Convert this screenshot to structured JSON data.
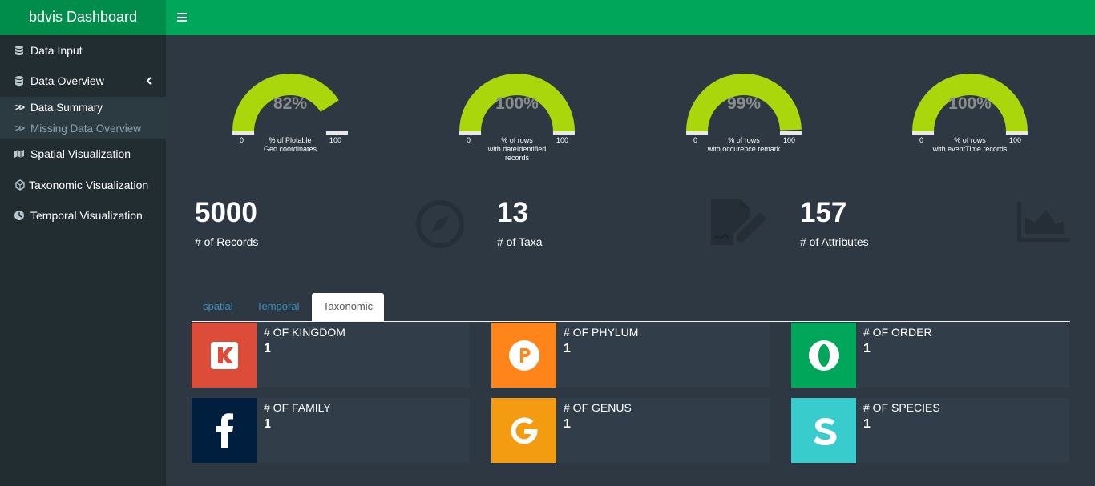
{
  "app": {
    "title": "bdvis Dashboard"
  },
  "sidebar": {
    "items": [
      {
        "label": "Data Input",
        "icon": "database-icon"
      },
      {
        "label": "Data Overview",
        "icon": "database-icon"
      },
      {
        "label": "Spatial Visualization",
        "icon": "map-icon"
      },
      {
        "label": "Taxonomic Visualization",
        "icon": "tree-icon"
      },
      {
        "label": "Temporal Visualization",
        "icon": "clock-icon"
      }
    ],
    "submenu": [
      {
        "label": "Data Summary",
        "active": true
      },
      {
        "label": "Missing Data Overview",
        "active": false
      }
    ]
  },
  "gauges": [
    {
      "value": 82,
      "display": "82%",
      "min": "0",
      "max": "100",
      "label1": "% of Plotable",
      "label2": "Geo coordinates"
    },
    {
      "value": 100,
      "display": "100%",
      "min": "0",
      "max": "100",
      "label1": "% of rows",
      "label2": "with dateIdentified records"
    },
    {
      "value": 99,
      "display": "99%",
      "min": "0",
      "max": "100",
      "label1": "% of rows",
      "label2": "with occurence remark"
    },
    {
      "value": 100,
      "display": "100%",
      "min": "0",
      "max": "100",
      "label1": "% of rows",
      "label2": "with eventTime records"
    }
  ],
  "gauge_colors": {
    "fill": "#a9d70b",
    "empty": "#e8e8e8"
  },
  "value_boxes": [
    {
      "value": "5000",
      "label": "# of Records",
      "color": "#00c0ef",
      "icon": "compass-icon"
    },
    {
      "value": "13",
      "label": "# of Taxa",
      "color": "#0073b7",
      "icon": "file-signature-icon"
    },
    {
      "value": "157",
      "label": "# of Attributes",
      "color": "#3c8dbc",
      "icon": "area-chart-icon"
    }
  ],
  "tabs": [
    {
      "label": "spatial",
      "active": false
    },
    {
      "label": "Temporal",
      "active": false
    },
    {
      "label": "Taxonomic",
      "active": true
    }
  ],
  "info_boxes": [
    {
      "text": "# of Kingdom",
      "number": "1",
      "color": "#dd4b39",
      "icon": "kickstarter-icon",
      "glyph": "K"
    },
    {
      "text": "# of Phylum",
      "number": "1",
      "color": "#ff851b",
      "icon": "product-hunt-icon",
      "glyph": "P"
    },
    {
      "text": "# of Order",
      "number": "1",
      "color": "#00a65a",
      "icon": "opera-icon",
      "glyph": "O"
    },
    {
      "text": "# of Family",
      "number": "1",
      "color": "#001f3f",
      "icon": "facebook-icon",
      "glyph": "f"
    },
    {
      "text": "# of Genus",
      "number": "1",
      "color": "#f39c12",
      "icon": "google-icon",
      "glyph": "G"
    },
    {
      "text": "# of Species",
      "number": "1",
      "color": "#39cccc",
      "icon": "stripe-s-icon",
      "glyph": "S"
    }
  ]
}
